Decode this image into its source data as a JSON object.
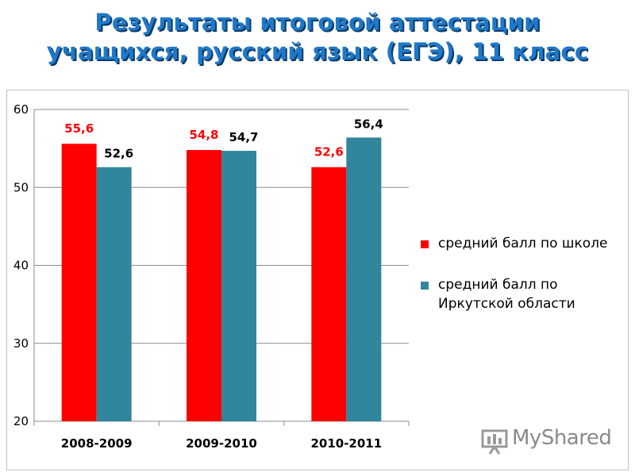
{
  "title_line1": "Результаты  итоговой аттестации",
  "title_line2": "учащихся, русский язык (ЕГЭ), 11 класс",
  "chart_data": {
    "type": "bar",
    "categories": [
      "2008-2009",
      "2009-2010",
      "2010-2011"
    ],
    "series": [
      {
        "name": "средний балл по школе",
        "color": "#ff0000",
        "values": [
          55.6,
          54.8,
          52.6
        ],
        "labels": [
          "55,6",
          "54,8",
          "52,6"
        ]
      },
      {
        "name": "средний балл по Иркутской области",
        "color": "#31859c",
        "values": [
          52.6,
          54.7,
          56.4
        ],
        "labels": [
          "52,6",
          "54,7",
          "56,4"
        ]
      }
    ],
    "ylim": [
      20,
      60
    ],
    "yticks": [
      20,
      30,
      40,
      50,
      60
    ],
    "grid": true,
    "legend_position": "right"
  },
  "legend": {
    "item1": "средний балл по школе",
    "item2": "средний балл по Иркутской области"
  },
  "watermark": {
    "text": "MyShared"
  }
}
